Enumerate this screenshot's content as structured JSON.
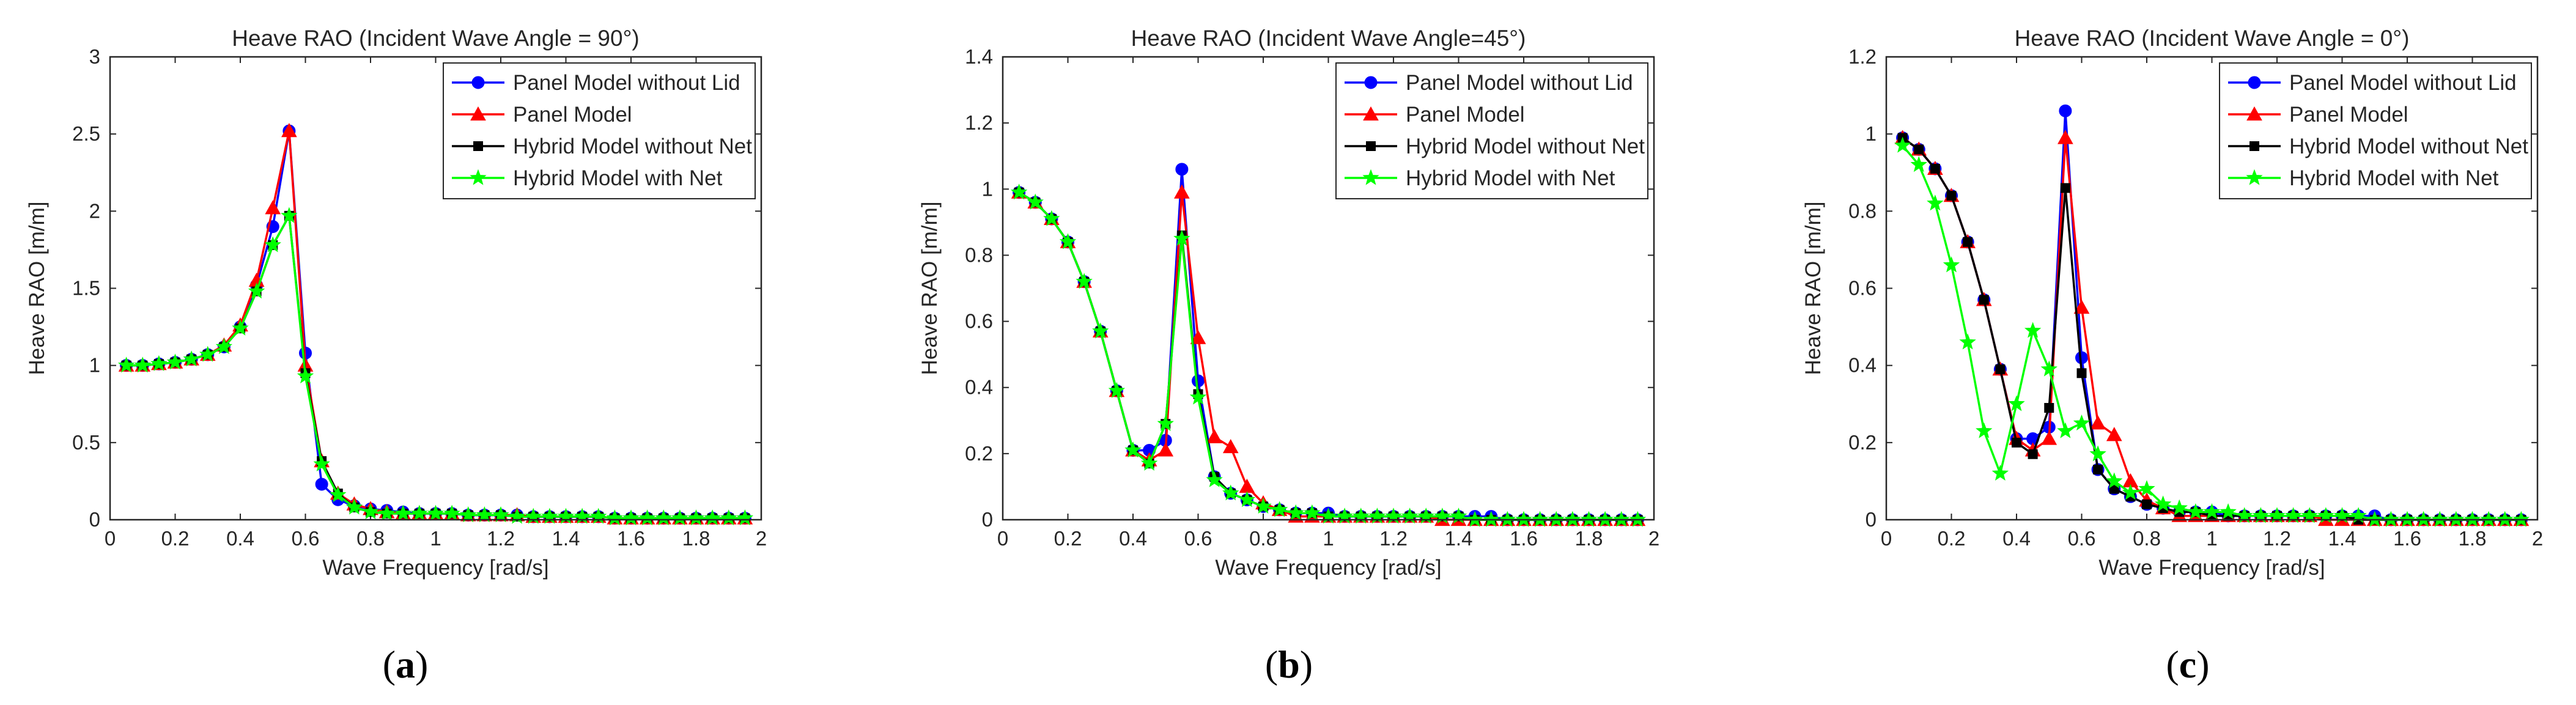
{
  "chart_data": [
    {
      "type": "line",
      "title": "Heave RAO (Incident Wave Angle = 90°)",
      "xlabel": "Wave Frequency [rad/s]",
      "ylabel": "Heave RAO [m/m]",
      "xlim": [
        0,
        2
      ],
      "ylim": [
        0,
        3
      ],
      "xticks": [
        0,
        0.2,
        0.4,
        0.6,
        0.8,
        1,
        1.2,
        1.4,
        1.6,
        1.8,
        2
      ],
      "xtick_labels": [
        "0",
        "0.2",
        "0.4",
        "0.6",
        "0.8",
        "1",
        "1.2",
        "1.4",
        "1.6",
        "1.8",
        "2"
      ],
      "yticks": [
        0,
        0.5,
        1,
        1.5,
        2,
        2.5,
        3
      ],
      "ytick_labels": [
        "0",
        "0.5",
        "1",
        "1.5",
        "2",
        "2.5",
        "3"
      ],
      "label_prefix": "(",
      "label": "a",
      "label_suffix": ")",
      "legend": "top-right",
      "x": [
        0.05,
        0.1,
        0.15,
        0.2,
        0.25,
        0.3,
        0.35,
        0.4,
        0.45,
        0.5,
        0.55,
        0.6,
        0.65,
        0.7,
        0.75,
        0.8,
        0.85,
        0.9,
        0.95,
        1.0,
        1.05,
        1.1,
        1.15,
        1.2,
        1.25,
        1.3,
        1.35,
        1.4,
        1.45,
        1.5,
        1.55,
        1.6,
        1.65,
        1.7,
        1.75,
        1.8,
        1.85,
        1.9,
        1.95
      ],
      "series": [
        {
          "name": "Panel Model without Lid",
          "color": "#0000ff",
          "marker": "circle",
          "values": [
            1.0,
            1.0,
            1.01,
            1.02,
            1.04,
            1.07,
            1.12,
            1.25,
            1.52,
            1.9,
            2.52,
            1.08,
            0.23,
            0.13,
            0.09,
            0.07,
            0.06,
            0.05,
            0.04,
            0.04,
            0.04,
            0.03,
            0.03,
            0.03,
            0.03,
            0.02,
            0.02,
            0.02,
            0.02,
            0.02,
            0.01,
            0.01,
            0.01,
            0.01,
            0.01,
            0.01,
            0.01,
            0.01,
            0.01
          ]
        },
        {
          "name": "Panel Model",
          "color": "#ff0000",
          "marker": "triangle",
          "values": [
            1.0,
            1.0,
            1.01,
            1.02,
            1.04,
            1.07,
            1.13,
            1.26,
            1.55,
            2.02,
            2.52,
            1.0,
            0.38,
            0.17,
            0.1,
            0.07,
            0.05,
            0.04,
            0.04,
            0.04,
            0.04,
            0.03,
            0.03,
            0.03,
            0.03,
            0.02,
            0.02,
            0.02,
            0.02,
            0.02,
            0.01,
            0.01,
            0.01,
            0.01,
            0.01,
            0.01,
            0.01,
            0.01,
            0.01
          ]
        },
        {
          "name": "Hybrid Model without Net",
          "color": "#000000",
          "marker": "square",
          "values": [
            1.0,
            1.0,
            1.01,
            1.02,
            1.04,
            1.07,
            1.12,
            1.24,
            1.48,
            1.78,
            1.97,
            0.95,
            0.38,
            0.17,
            0.08,
            0.05,
            0.04,
            0.04,
            0.04,
            0.04,
            0.04,
            0.03,
            0.03,
            0.03,
            0.02,
            0.02,
            0.02,
            0.02,
            0.02,
            0.02,
            0.01,
            0.01,
            0.01,
            0.01,
            0.01,
            0.01,
            0.01,
            0.01,
            0.01
          ]
        },
        {
          "name": "Hybrid Model with Net",
          "color": "#00ff00",
          "marker": "star",
          "values": [
            1.0,
            1.0,
            1.01,
            1.02,
            1.04,
            1.07,
            1.12,
            1.24,
            1.48,
            1.78,
            1.97,
            0.93,
            0.36,
            0.16,
            0.08,
            0.05,
            0.04,
            0.04,
            0.04,
            0.04,
            0.04,
            0.03,
            0.03,
            0.03,
            0.02,
            0.02,
            0.02,
            0.02,
            0.02,
            0.02,
            0.01,
            0.01,
            0.01,
            0.01,
            0.01,
            0.01,
            0.01,
            0.01,
            0.01
          ]
        }
      ]
    },
    {
      "type": "line",
      "title": "Heave RAO (Incident Wave Angle=45°)",
      "xlabel": "Wave Frequency [rad/s]",
      "ylabel": "Heave RAO [m/m]",
      "xlim": [
        0,
        2
      ],
      "ylim": [
        0,
        1.4
      ],
      "xticks": [
        0,
        0.2,
        0.4,
        0.6,
        0.8,
        1,
        1.2,
        1.4,
        1.6,
        1.8,
        2
      ],
      "xtick_labels": [
        "0",
        "0.2",
        "0.4",
        "0.6",
        "0.8",
        "1",
        "1.2",
        "1.4",
        "1.6",
        "1.8",
        "2"
      ],
      "yticks": [
        0,
        0.2,
        0.4,
        0.6,
        0.8,
        1,
        1.2,
        1.4
      ],
      "ytick_labels": [
        "0",
        "0.2",
        "0.4",
        "0.6",
        "0.8",
        "1",
        "1.2",
        "1.4"
      ],
      "label_prefix": "(",
      "label": "b",
      "label_suffix": ")",
      "legend": "top-right",
      "x": [
        0.05,
        0.1,
        0.15,
        0.2,
        0.25,
        0.3,
        0.35,
        0.4,
        0.45,
        0.5,
        0.55,
        0.6,
        0.65,
        0.7,
        0.75,
        0.8,
        0.85,
        0.9,
        0.95,
        1.0,
        1.05,
        1.1,
        1.15,
        1.2,
        1.25,
        1.3,
        1.35,
        1.4,
        1.45,
        1.5,
        1.55,
        1.6,
        1.65,
        1.7,
        1.75,
        1.8,
        1.85,
        1.9,
        1.95
      ],
      "series": [
        {
          "name": "Panel Model without Lid",
          "color": "#0000ff",
          "marker": "circle",
          "values": [
            0.99,
            0.96,
            0.91,
            0.84,
            0.72,
            0.57,
            0.39,
            0.21,
            0.21,
            0.24,
            1.06,
            0.42,
            0.13,
            0.08,
            0.06,
            0.04,
            0.03,
            0.02,
            0.02,
            0.02,
            0.01,
            0.01,
            0.01,
            0.01,
            0.01,
            0.01,
            0.01,
            0.01,
            0.01,
            0.01,
            0.0,
            0.0,
            0.0,
            0.0,
            0.0,
            0.0,
            0.0,
            0.0,
            0.0
          ]
        },
        {
          "name": "Panel Model",
          "color": "#ff0000",
          "marker": "triangle",
          "values": [
            0.99,
            0.96,
            0.91,
            0.84,
            0.72,
            0.57,
            0.39,
            0.21,
            0.18,
            0.21,
            0.99,
            0.55,
            0.25,
            0.22,
            0.1,
            0.05,
            0.03,
            0.01,
            0.01,
            0.01,
            0.01,
            0.01,
            0.01,
            0.01,
            0.01,
            0.01,
            0.0,
            0.0,
            0.0,
            0.0,
            0.0,
            0.0,
            0.0,
            0.0,
            0.0,
            0.0,
            0.0,
            0.0,
            0.0
          ]
        },
        {
          "name": "Hybrid Model without Net",
          "color": "#000000",
          "marker": "square",
          "values": [
            0.99,
            0.96,
            0.91,
            0.84,
            0.72,
            0.57,
            0.39,
            0.21,
            0.17,
            0.29,
            0.86,
            0.38,
            0.13,
            0.08,
            0.06,
            0.04,
            0.03,
            0.02,
            0.02,
            0.01,
            0.01,
            0.01,
            0.01,
            0.01,
            0.01,
            0.01,
            0.01,
            0.01,
            0.0,
            0.0,
            0.0,
            0.0,
            0.0,
            0.0,
            0.0,
            0.0,
            0.0,
            0.0,
            0.0
          ]
        },
        {
          "name": "Hybrid Model with Net",
          "color": "#00ff00",
          "marker": "star",
          "values": [
            0.99,
            0.96,
            0.91,
            0.84,
            0.72,
            0.57,
            0.39,
            0.21,
            0.17,
            0.29,
            0.85,
            0.37,
            0.12,
            0.08,
            0.06,
            0.04,
            0.03,
            0.02,
            0.02,
            0.01,
            0.01,
            0.01,
            0.01,
            0.01,
            0.01,
            0.01,
            0.01,
            0.01,
            0.0,
            0.0,
            0.0,
            0.0,
            0.0,
            0.0,
            0.0,
            0.0,
            0.0,
            0.0,
            0.0
          ]
        }
      ]
    },
    {
      "type": "line",
      "title": "Heave RAO (Incident Wave Angle = 0°)",
      "xlabel": "Wave Frequency [rad/s]",
      "ylabel": "Heave RAO [m/m]",
      "xlim": [
        0,
        2
      ],
      "ylim": [
        0,
        1.2
      ],
      "xticks": [
        0,
        0.2,
        0.4,
        0.6,
        0.8,
        1,
        1.2,
        1.4,
        1.6,
        1.8,
        2
      ],
      "xtick_labels": [
        "0",
        "0.2",
        "0.4",
        "0.6",
        "0.8",
        "1",
        "1.2",
        "1.4",
        "1.6",
        "1.8",
        "2"
      ],
      "yticks": [
        0,
        0.2,
        0.4,
        0.6,
        0.8,
        1,
        1.2
      ],
      "ytick_labels": [
        "0",
        "0.2",
        "0.4",
        "0.6",
        "0.8",
        "1",
        "1.2"
      ],
      "label_prefix": "(",
      "label": "c",
      "label_suffix": ")",
      "legend": "top-right",
      "x": [
        0.05,
        0.1,
        0.15,
        0.2,
        0.25,
        0.3,
        0.35,
        0.4,
        0.45,
        0.5,
        0.55,
        0.6,
        0.65,
        0.7,
        0.75,
        0.8,
        0.85,
        0.9,
        0.95,
        1.0,
        1.05,
        1.1,
        1.15,
        1.2,
        1.25,
        1.3,
        1.35,
        1.4,
        1.45,
        1.5,
        1.55,
        1.6,
        1.65,
        1.7,
        1.75,
        1.8,
        1.85,
        1.9,
        1.95
      ],
      "series": [
        {
          "name": "Panel Model without Lid",
          "color": "#0000ff",
          "marker": "circle",
          "values": [
            0.99,
            0.96,
            0.91,
            0.84,
            0.72,
            0.57,
            0.39,
            0.21,
            0.21,
            0.24,
            1.06,
            0.42,
            0.13,
            0.08,
            0.06,
            0.04,
            0.03,
            0.02,
            0.02,
            0.02,
            0.01,
            0.01,
            0.01,
            0.01,
            0.01,
            0.01,
            0.01,
            0.01,
            0.01,
            0.01,
            0.0,
            0.0,
            0.0,
            0.0,
            0.0,
            0.0,
            0.0,
            0.0,
            0.0
          ]
        },
        {
          "name": "Panel Model",
          "color": "#ff0000",
          "marker": "triangle",
          "values": [
            0.99,
            0.96,
            0.91,
            0.84,
            0.72,
            0.57,
            0.39,
            0.21,
            0.18,
            0.21,
            0.99,
            0.55,
            0.25,
            0.22,
            0.1,
            0.05,
            0.03,
            0.01,
            0.01,
            0.01,
            0.01,
            0.01,
            0.01,
            0.01,
            0.01,
            0.01,
            0.0,
            0.0,
            0.0,
            0.0,
            0.0,
            0.0,
            0.0,
            0.0,
            0.0,
            0.0,
            0.0,
            0.0,
            0.0
          ]
        },
        {
          "name": "Hybrid Model without Net",
          "color": "#000000",
          "marker": "square",
          "values": [
            0.99,
            0.96,
            0.91,
            0.84,
            0.72,
            0.57,
            0.39,
            0.2,
            0.17,
            0.29,
            0.86,
            0.38,
            0.13,
            0.08,
            0.06,
            0.04,
            0.03,
            0.02,
            0.02,
            0.01,
            0.01,
            0.01,
            0.01,
            0.01,
            0.01,
            0.01,
            0.01,
            0.01,
            0.0,
            0.0,
            0.0,
            0.0,
            0.0,
            0.0,
            0.0,
            0.0,
            0.0,
            0.0,
            0.0
          ]
        },
        {
          "name": "Hybrid Model with Net",
          "color": "#00ff00",
          "marker": "star",
          "values": [
            0.97,
            0.92,
            0.82,
            0.66,
            0.46,
            0.23,
            0.12,
            0.3,
            0.49,
            0.39,
            0.23,
            0.25,
            0.17,
            0.1,
            0.07,
            0.08,
            0.04,
            0.03,
            0.02,
            0.02,
            0.02,
            0.01,
            0.01,
            0.01,
            0.01,
            0.01,
            0.01,
            0.01,
            0.01,
            0.0,
            0.0,
            0.0,
            0.0,
            0.0,
            0.0,
            0.0,
            0.0,
            0.0,
            0.0
          ]
        }
      ]
    }
  ]
}
